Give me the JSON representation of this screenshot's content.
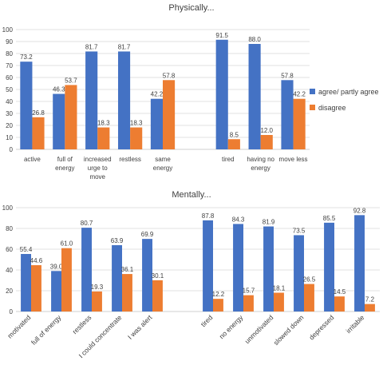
{
  "colors": {
    "agree": "#4472c4",
    "disagree": "#ed7d31",
    "grid": "#d9d9d9",
    "axis": "#bfbfbf",
    "text": "#404040"
  },
  "chart_data": [
    {
      "type": "bar",
      "title": "Physically...",
      "ylim": [
        0,
        100
      ],
      "yticks": [
        0,
        10,
        20,
        30,
        40,
        50,
        60,
        70,
        80,
        90,
        100
      ],
      "grid": true,
      "legend_position": "right",
      "categories": [
        "active",
        "full of energy",
        "increased urge to move",
        "restless",
        "same energy",
        "",
        "tired",
        "having no energy",
        "move less"
      ],
      "category_lines": [
        [
          "active"
        ],
        [
          "full of",
          "energy"
        ],
        [
          "increased",
          "urge to",
          "move"
        ],
        [
          "restless"
        ],
        [
          "same",
          "energy"
        ],
        [],
        [
          "tired"
        ],
        [
          "having no",
          "energy"
        ],
        [
          "move less"
        ]
      ],
      "series": [
        {
          "name": "agree/ partly agree",
          "values": [
            73.2,
            46.3,
            81.7,
            81.7,
            42.2,
            null,
            91.5,
            88.0,
            57.8
          ],
          "labels": [
            "73.2",
            "46.3",
            "81.7",
            "81.7",
            "42.2",
            "",
            "91.5",
            "88.0",
            "57.8"
          ]
        },
        {
          "name": "disagree",
          "values": [
            26.8,
            53.7,
            18.3,
            18.3,
            57.8,
            null,
            8.5,
            12.0,
            42.2
          ],
          "labels": [
            "26.8",
            "53.7",
            "18.3",
            "18.3",
            "57.8",
            "",
            "8.5",
            "12.0",
            "42.2"
          ]
        }
      ]
    },
    {
      "type": "bar",
      "title": "Mentally...",
      "ylim": [
        0,
        100
      ],
      "yticks": [
        0,
        20,
        40,
        60,
        80,
        100
      ],
      "grid": true,
      "legend_position": "none",
      "categories": [
        "motivated",
        "full of energy",
        "restless",
        "I could concentrate",
        "I was alert",
        "",
        "tired",
        "no energy",
        "unmotivated",
        "slowed down",
        "depressed",
        "irritable"
      ],
      "series": [
        {
          "name": "agree/ partly agree",
          "values": [
            55.4,
            39.0,
            80.7,
            63.9,
            69.9,
            null,
            87.8,
            84.3,
            81.9,
            73.5,
            85.5,
            92.8
          ],
          "labels": [
            "55.4",
            "39.0",
            "80.7",
            "63.9",
            "69.9",
            "",
            "87.8",
            "84.3",
            "81.9",
            "73.5",
            "85.5",
            "92.8"
          ]
        },
        {
          "name": "disagree",
          "values": [
            44.6,
            61.0,
            19.3,
            36.1,
            30.1,
            null,
            12.2,
            15.7,
            18.1,
            26.5,
            14.5,
            7.2
          ],
          "labels": [
            "44.6",
            "61.0",
            "19.3",
            "36.1",
            "30.1",
            "",
            "12.2",
            "15.7",
            "18.1",
            "26.5",
            "14.5",
            "7.2"
          ]
        }
      ]
    }
  ]
}
